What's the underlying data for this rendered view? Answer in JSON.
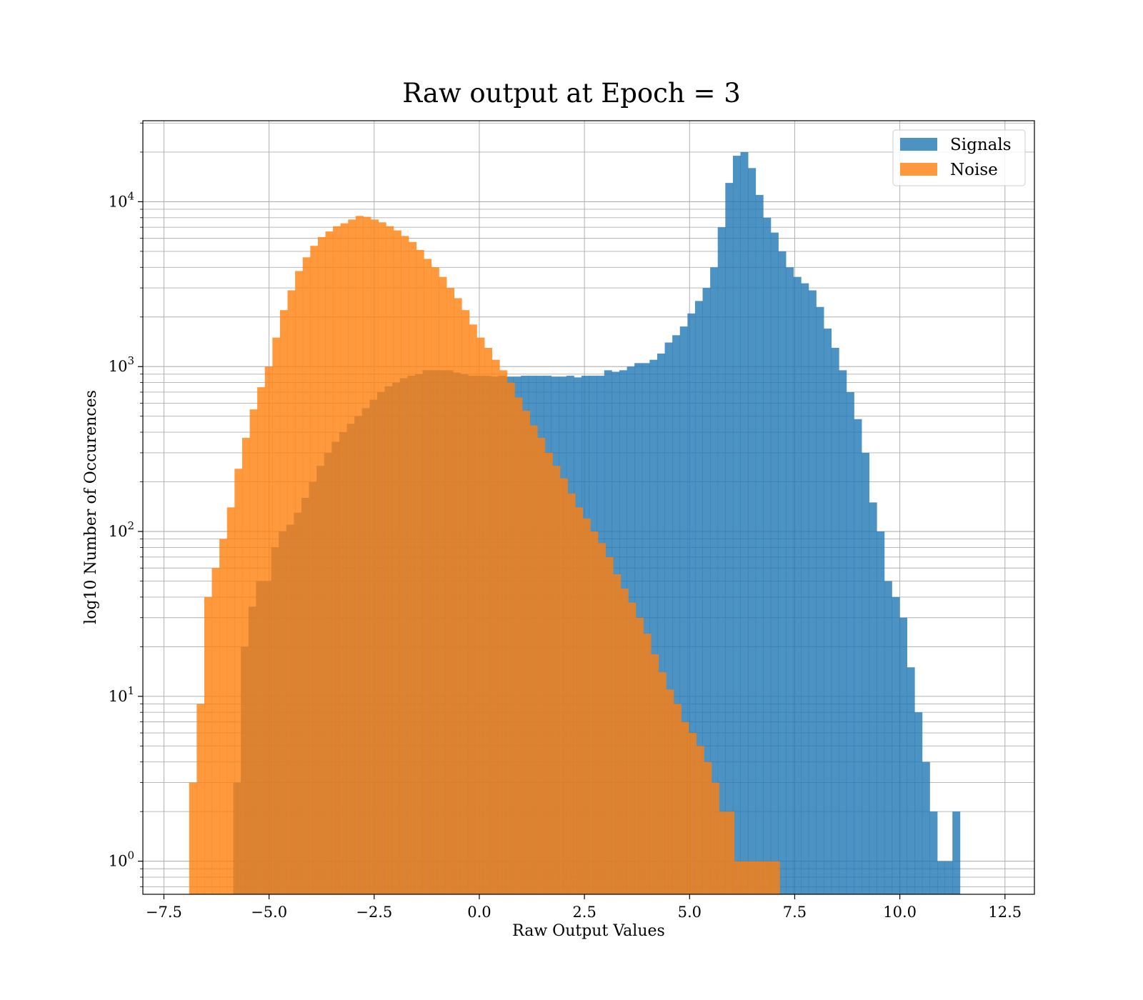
{
  "colors": {
    "signals": "#1f77b4",
    "noise": "#ff7f0e",
    "grid": "#b0b0b0"
  },
  "chart_data": {
    "type": "bar",
    "chart_kind": "overlaid histogram",
    "title": "Raw output at Epoch = 3",
    "xlabel": "Raw Output Values",
    "ylabel": "log10 Number of Occurences",
    "xlim": [
      -8.0,
      13.2
    ],
    "ylim": [
      0.63,
      31000
    ],
    "yscale": "log",
    "grid": true,
    "legend_position": "top-right",
    "x_ticks": [
      -7.5,
      -5.0,
      -2.5,
      0.0,
      2.5,
      5.0,
      7.5,
      10.0,
      12.5
    ],
    "x_tick_labels": [
      "−7.5",
      "−5.0",
      "−2.5",
      "0.0",
      "2.5",
      "5.0",
      "7.5",
      "10.0",
      "12.5"
    ],
    "y_ticks": [
      1,
      10,
      100,
      1000,
      10000
    ],
    "y_tick_labels": [
      {
        "base": "10",
        "exp": "0"
      },
      {
        "base": "10",
        "exp": "1"
      },
      {
        "base": "10",
        "exp": "2"
      },
      {
        "base": "10",
        "exp": "3"
      },
      {
        "base": "10",
        "exp": "4"
      }
    ],
    "series": [
      {
        "name": "Signals",
        "bins": {
          "start": -5.85,
          "width": 0.18
        },
        "values": [
          3,
          20,
          35,
          50,
          50,
          80,
          100,
          110,
          130,
          160,
          200,
          250,
          300,
          350,
          400,
          450,
          500,
          560,
          630,
          700,
          760,
          800,
          850,
          880,
          900,
          950,
          950,
          950,
          950,
          920,
          900,
          880,
          880,
          880,
          870,
          880,
          870,
          870,
          880,
          880,
          880,
          880,
          870,
          870,
          880,
          860,
          880,
          880,
          880,
          950,
          930,
          950,
          1000,
          1050,
          1050,
          1100,
          1200,
          1400,
          1550,
          1750,
          2100,
          2500,
          3000,
          4000,
          7000,
          13000,
          19000,
          20000,
          16000,
          11000,
          8000,
          6500,
          5000,
          4000,
          3500,
          3200,
          2900,
          2300,
          1700,
          1300,
          950,
          700,
          480,
          300,
          150,
          100,
          50,
          40,
          30,
          15,
          8,
          4,
          2,
          1,
          1,
          2
        ]
      },
      {
        "name": "Noise",
        "bins": {
          "start": -6.9,
          "width": 0.18
        },
        "values": [
          3,
          9,
          40,
          60,
          90,
          140,
          240,
          370,
          550,
          750,
          1000,
          1500,
          2200,
          2900,
          3800,
          4600,
          5400,
          6100,
          6600,
          7100,
          7400,
          7800,
          8200,
          8100,
          7800,
          7500,
          7100,
          6700,
          6200,
          5700,
          5100,
          4500,
          4000,
          3500,
          3000,
          2600,
          2200,
          1800,
          1500,
          1300,
          1100,
          950,
          800,
          650,
          540,
          440,
          370,
          300,
          250,
          210,
          170,
          140,
          120,
          100,
          85,
          70,
          55,
          45,
          37,
          30,
          24,
          18,
          14,
          11,
          9,
          7,
          6,
          5,
          4,
          3,
          2,
          2,
          1,
          1,
          1,
          1,
          1,
          1
        ]
      }
    ]
  }
}
